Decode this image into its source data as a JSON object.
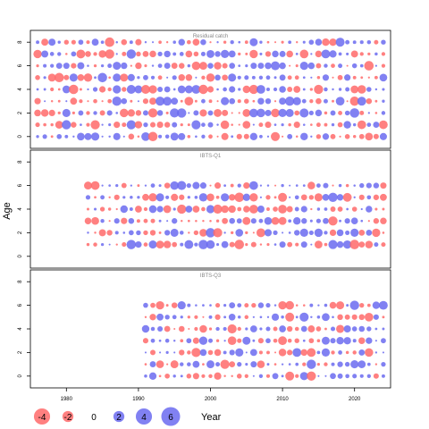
{
  "chart_data": {
    "type": "scatter",
    "ylabel": "Age",
    "xlabel": "Year",
    "x_ticks": [
      1980,
      1990,
      2000,
      2010,
      2020
    ],
    "y_ticks": [
      0,
      2,
      4,
      6,
      8
    ],
    "colors": {
      "negative": "#FF6A6A",
      "positive": "#6B6BF0"
    },
    "panels": [
      {
        "title": "Residual catch",
        "ages": [
          0,
          8
        ],
        "years": [
          1976,
          2024
        ],
        "xlim": [
          1975,
          2025
        ],
        "ylim": [
          -1,
          9
        ],
        "seed": 17
      },
      {
        "title": "IBTS-Q1",
        "ages": [
          1,
          6
        ],
        "years": [
          1983,
          2024
        ],
        "xlim": [
          1975,
          2025
        ],
        "ylim": [
          -1,
          9
        ],
        "seed": 53
      },
      {
        "title": "IBTS-Q3",
        "ages": [
          0,
          6
        ],
        "years": [
          1991,
          2024
        ],
        "xlim": [
          1975,
          2025
        ],
        "ylim": [
          -1,
          9
        ],
        "seed": 91
      }
    ],
    "legend": {
      "values": [
        -4,
        -2,
        0,
        2,
        4,
        6
      ],
      "labels": [
        "-4",
        "-2",
        "0",
        "2",
        "4",
        "6"
      ],
      "title": "Year"
    }
  }
}
